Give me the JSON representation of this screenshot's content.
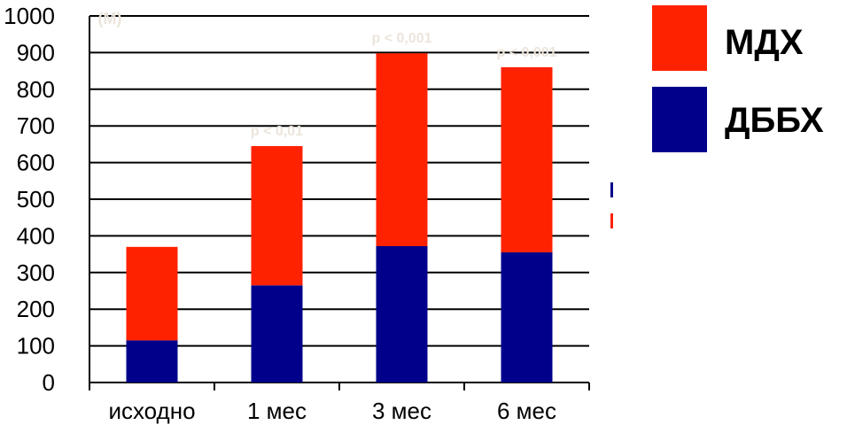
{
  "chart_data": {
    "type": "bar",
    "stacked": true,
    "categories": [
      "исходно",
      "1 мес",
      "3 мес",
      "6 мес"
    ],
    "series": [
      {
        "name": "ДББХ",
        "color": "#00008B",
        "values": [
          115,
          265,
          372,
          355
        ]
      },
      {
        "name": "МДХ",
        "color": "#FF2200",
        "values": [
          255,
          380,
          526,
          505
        ]
      }
    ],
    "ylim": [
      0,
      1000
    ],
    "yticks": [
      0,
      100,
      200,
      300,
      400,
      500,
      600,
      700,
      800,
      900,
      1000
    ],
    "unit_label": "(M)",
    "annotations": [
      {
        "category": "1 мес",
        "text": "p < 0,01"
      },
      {
        "category": "3 мес",
        "text": "p < 0,001"
      },
      {
        "category": "6 мес",
        "text": "p < 0,001"
      }
    ],
    "grid": true,
    "legend_position": "right"
  },
  "legend": {
    "items": [
      {
        "label": "МДХ",
        "color": "#FF2200"
      },
      {
        "label": "ДББХ",
        "color": "#00008B"
      }
    ]
  },
  "stray_marks": {
    "colors": [
      "#00008B",
      "#FF2200"
    ]
  }
}
